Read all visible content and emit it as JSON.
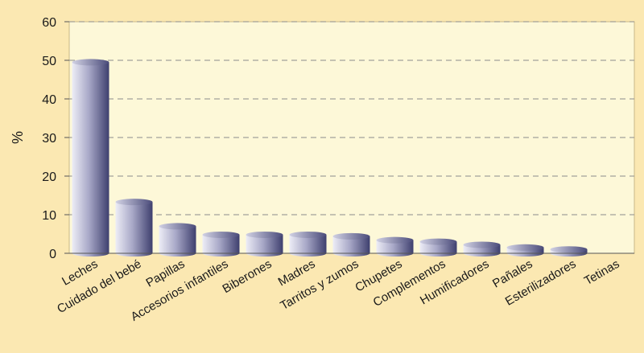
{
  "chart_data": {
    "type": "bar",
    "title": "",
    "xlabel": "",
    "ylabel": "%",
    "ylim": [
      0,
      60
    ],
    "yticks": [
      0,
      10,
      20,
      30,
      40,
      50,
      60
    ],
    "grid": true,
    "categories": [
      "Leches",
      "Cuidado del bebé",
      "Papillas",
      "Accesorios infantiles",
      "Biberones",
      "Madres",
      "Tarritos y zumos",
      "Chupetes",
      "Complementos",
      "Humificadores",
      "Pañales",
      "Esterilizadores",
      "Tetinas"
    ],
    "values": [
      49.5,
      13.3,
      7.0,
      4.8,
      4.8,
      4.8,
      4.4,
      3.4,
      3.0,
      2.2,
      1.5,
      1.0,
      0
    ],
    "colors": {
      "page_background": "#fbe8b2",
      "plot_background": "#fdf8d8",
      "bar_dark": "#3e3f6e",
      "bar_light": "#ededf6",
      "gridline": "#8c8c8c"
    }
  }
}
